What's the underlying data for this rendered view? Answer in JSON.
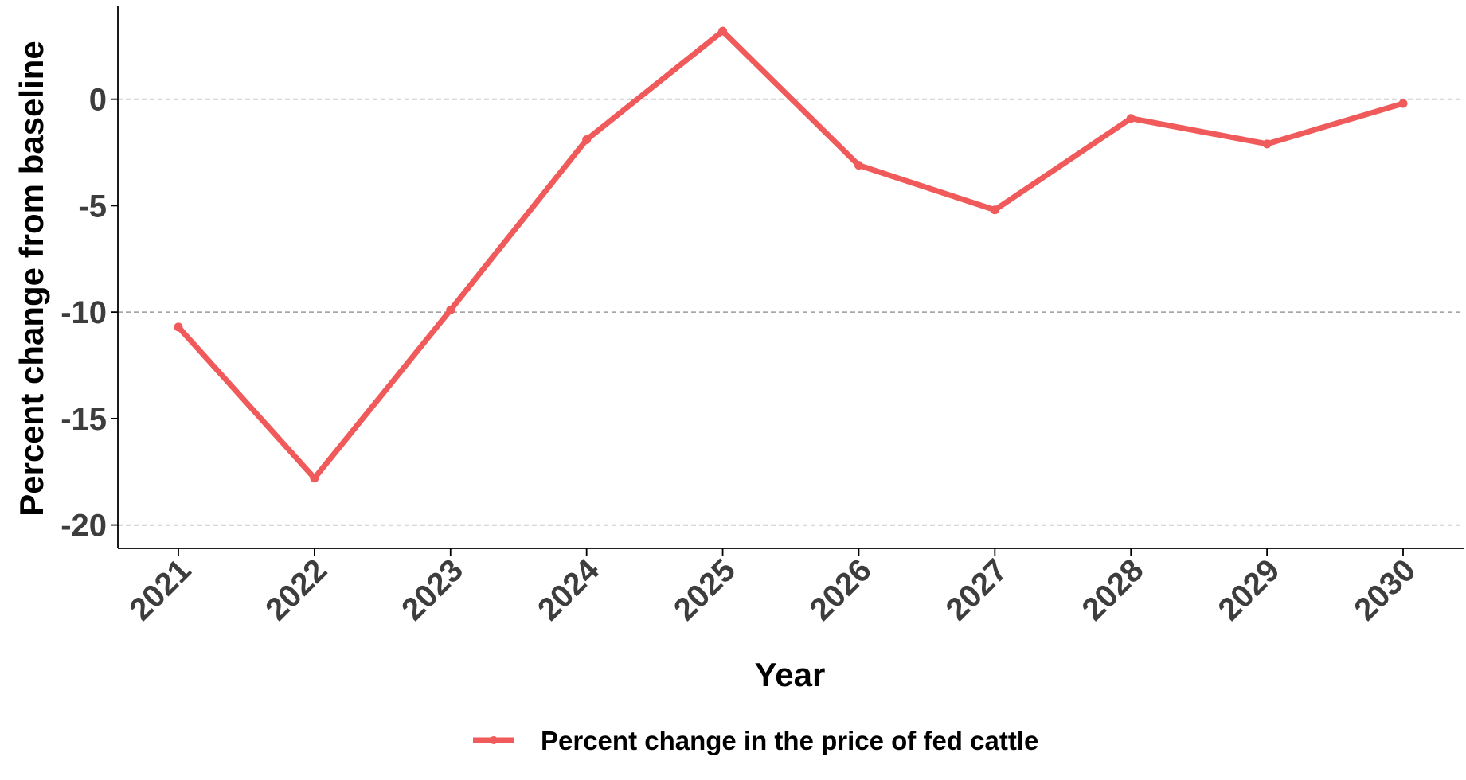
{
  "chart_data": {
    "type": "line",
    "title": "",
    "xlabel": "Year",
    "ylabel": "Percent change from baseline",
    "x": [
      "2021",
      "2022",
      "2023",
      "2024",
      "2025",
      "2026",
      "2027",
      "2028",
      "2029",
      "2030"
    ],
    "y_ticks": [
      "0",
      "-5",
      "-10",
      "-15",
      "-20"
    ],
    "ylim": [
      -21.1,
      4.4
    ],
    "hlines": [
      0,
      -10,
      -20
    ],
    "grid": false,
    "legend_position": "bottom",
    "series": [
      {
        "name": "Percent change in the price of fed cattle",
        "color": "#f05a5a",
        "values": [
          -10.7,
          -17.8,
          -9.9,
          -1.9,
          3.2,
          -3.1,
          -5.2,
          -0.9,
          -2.1,
          -0.2
        ]
      }
    ]
  }
}
